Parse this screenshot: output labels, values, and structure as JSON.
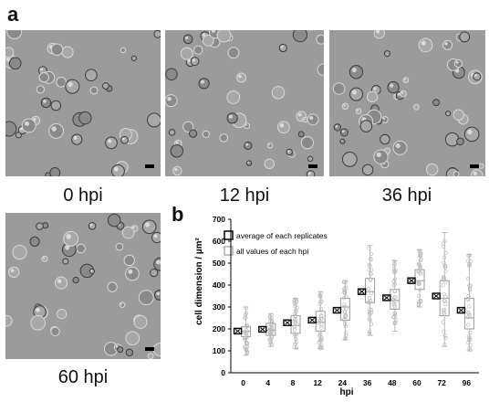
{
  "figure": {
    "panel_a_label": "a",
    "panel_b_label": "b"
  },
  "micrographs": [
    {
      "caption": "0 hpi"
    },
    {
      "caption": "12 hpi"
    },
    {
      "caption": "36 hpi"
    },
    {
      "caption": "60 hpi"
    }
  ],
  "chart_data": {
    "type": "box",
    "xlabel": "hpi",
    "ylabel": "cell dimension / µm²",
    "ylim": [
      0,
      700
    ],
    "yticks": [
      0,
      100,
      200,
      300,
      400,
      500,
      600,
      700
    ],
    "categories": [
      "0",
      "4",
      "8",
      "12",
      "24",
      "36",
      "48",
      "60",
      "72",
      "96"
    ],
    "legend": [
      {
        "marker": "black-square",
        "label": "average of each replicates"
      },
      {
        "marker": "grey-square",
        "label": "all values of each hpi"
      }
    ],
    "series": [
      {
        "name": "average of each replicates",
        "values": [
          190,
          198,
          228,
          240,
          285,
          370,
          342,
          420,
          350,
          285
        ]
      },
      {
        "name": "all values of each hpi",
        "boxes": [
          {
            "min": 80,
            "q1": 165,
            "median": 190,
            "q3": 210,
            "max": 300
          },
          {
            "min": 120,
            "q1": 170,
            "median": 195,
            "q3": 225,
            "max": 270
          },
          {
            "min": 110,
            "q1": 180,
            "median": 215,
            "q3": 260,
            "max": 340
          },
          {
            "min": 110,
            "q1": 190,
            "median": 230,
            "q3": 280,
            "max": 370
          },
          {
            "min": 150,
            "q1": 240,
            "median": 300,
            "q3": 340,
            "max": 420
          },
          {
            "min": 170,
            "q1": 320,
            "median": 370,
            "q3": 430,
            "max": 580
          },
          {
            "min": 190,
            "q1": 290,
            "median": 330,
            "q3": 380,
            "max": 510
          },
          {
            "min": 300,
            "q1": 380,
            "median": 420,
            "q3": 470,
            "max": 560
          },
          {
            "min": 120,
            "q1": 260,
            "median": 340,
            "q3": 420,
            "max": 640
          },
          {
            "min": 100,
            "q1": 200,
            "median": 250,
            "q3": 340,
            "max": 540
          }
        ]
      }
    ]
  }
}
